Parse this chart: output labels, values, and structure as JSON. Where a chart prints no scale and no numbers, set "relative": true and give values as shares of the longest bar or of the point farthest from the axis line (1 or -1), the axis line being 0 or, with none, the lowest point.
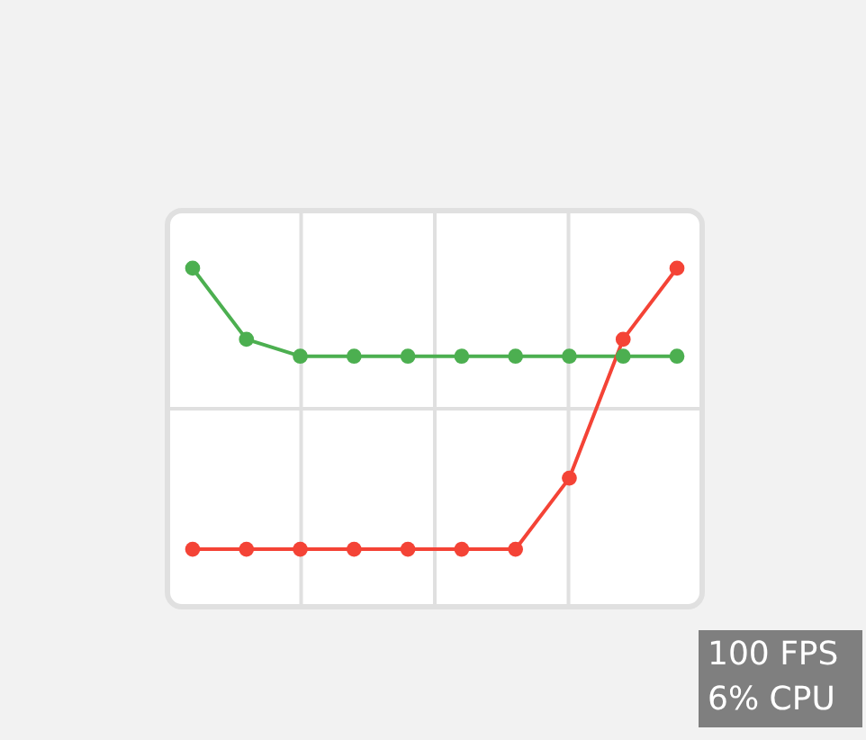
{
  "chart_data": {
    "type": "line",
    "relative": true,
    "categories": [
      null,
      null,
      null,
      null,
      null,
      null,
      null,
      null,
      null,
      null
    ],
    "series": [
      {
        "color": "#4caf50",
        "values": [
          1,
          0.79,
          0.74,
          0.74,
          0.74,
          0.74,
          0.74,
          0.74,
          0.74,
          0.74
        ]
      },
      {
        "color": "#f44336",
        "values": [
          0.17,
          0.17,
          0.17,
          0.17,
          0.17,
          0.17,
          0.17,
          0.38,
          0.79,
          1
        ]
      }
    ],
    "grid": true,
    "legend": false,
    "marker": "circle",
    "line_style": "solid",
    "annotations": [
      "100 FPS",
      "6% CPU"
    ]
  }
}
